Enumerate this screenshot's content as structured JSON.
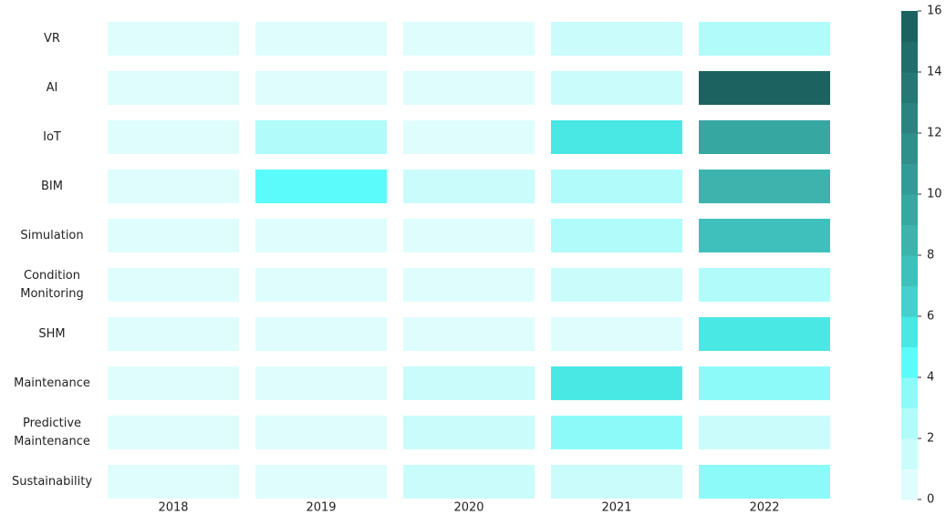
{
  "chart_data": {
    "type": "heatmap",
    "x": [
      "2018",
      "2019",
      "2020",
      "2021",
      "2022"
    ],
    "categories": [
      "VR",
      "AI",
      "IoT",
      "BIM",
      "Simulation",
      "Condition Monitoring",
      "SHM",
      "Maintenance",
      "Predictive Maintenance",
      "Sustainability"
    ],
    "z": [
      [
        0,
        0,
        0,
        1,
        2
      ],
      [
        0,
        0,
        0,
        1,
        16
      ],
      [
        0,
        2,
        0,
        5,
        9
      ],
      [
        0,
        4,
        1,
        2,
        8
      ],
      [
        0,
        0,
        0,
        2,
        7
      ],
      [
        0,
        0,
        0,
        1,
        2
      ],
      [
        0,
        0,
        0,
        0,
        5
      ],
      [
        0,
        0,
        1,
        5,
        3
      ],
      [
        0,
        0,
        1,
        3,
        1
      ],
      [
        0,
        0,
        1,
        1,
        3
      ]
    ],
    "zlim": [
      0,
      16
    ],
    "zticks": [
      0,
      2,
      4,
      6,
      8,
      10,
      12,
      14,
      16
    ],
    "colors": [
      "#e0fdfd",
      "#cbfcfc",
      "#b1fbfb",
      "#8dfafa",
      "#5cfbfb",
      "#4ae8e5",
      "#45d0cd",
      "#40c0bc",
      "#3db3ae",
      "#37a7a2",
      "#339b97",
      "#2f8f8b",
      "#2a8380",
      "#267875",
      "#216d6b",
      "#1c6260"
    ]
  }
}
